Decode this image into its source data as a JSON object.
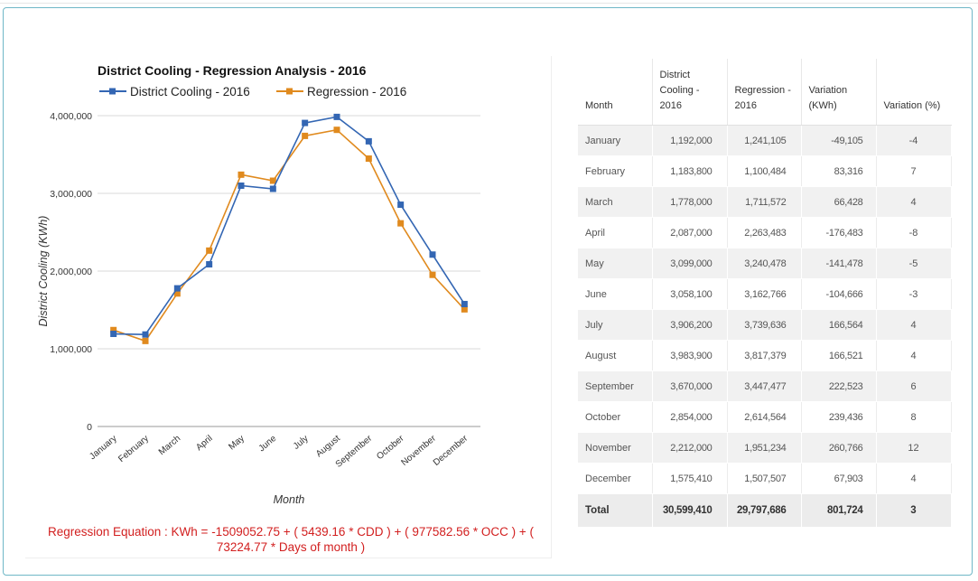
{
  "chart_data": {
    "type": "line",
    "title": "District Cooling - Regression Analysis - 2016",
    "xlabel": "Month",
    "ylabel": "District Cooling (KWh)",
    "ylim": [
      0,
      4000000
    ],
    "yticks": [
      "0",
      "1,000,000",
      "2,000,000",
      "3,000,000",
      "4,000,000"
    ],
    "ytick_values": [
      0,
      1000000,
      2000000,
      3000000,
      4000000
    ],
    "categories": [
      "January",
      "February",
      "March",
      "April",
      "May",
      "June",
      "July",
      "August",
      "September",
      "October",
      "November",
      "December"
    ],
    "grid": true,
    "legend": "top-left",
    "series": [
      {
        "name": "District Cooling - 2016",
        "color": "#3366b3",
        "values": [
          1192000,
          1183800,
          1778000,
          2087000,
          3099000,
          3058100,
          3906200,
          3983900,
          3670000,
          2854000,
          2212000,
          1575410
        ]
      },
      {
        "name": "Regression - 2016",
        "color": "#e08a1e",
        "values": [
          1241105,
          1100484,
          1711572,
          2263483,
          3240478,
          3162766,
          3739636,
          3817379,
          3447477,
          2614564,
          1951234,
          1507507
        ]
      }
    ]
  },
  "regression_equation": "Regression Equation : KWh = -1509052.75 + ( 5439.16 * CDD ) + ( 977582.56 * OCC ) + ( 73224.77 * Days of month )",
  "table": {
    "headers": [
      "Month",
      "District Cooling - 2016",
      "Regression - 2016",
      "Variation (KWh)",
      "Variation (%)"
    ],
    "rows": [
      [
        "January",
        "1,192,000",
        "1,241,105",
        "-49,105",
        "-4"
      ],
      [
        "February",
        "1,183,800",
        "1,100,484",
        "83,316",
        "7"
      ],
      [
        "March",
        "1,778,000",
        "1,711,572",
        "66,428",
        "4"
      ],
      [
        "April",
        "2,087,000",
        "2,263,483",
        "-176,483",
        "-8"
      ],
      [
        "May",
        "3,099,000",
        "3,240,478",
        "-141,478",
        "-5"
      ],
      [
        "June",
        "3,058,100",
        "3,162,766",
        "-104,666",
        "-3"
      ],
      [
        "July",
        "3,906,200",
        "3,739,636",
        "166,564",
        "4"
      ],
      [
        "August",
        "3,983,900",
        "3,817,379",
        "166,521",
        "4"
      ],
      [
        "September",
        "3,670,000",
        "3,447,477",
        "222,523",
        "6"
      ],
      [
        "October",
        "2,854,000",
        "2,614,564",
        "239,436",
        "8"
      ],
      [
        "November",
        "2,212,000",
        "1,951,234",
        "260,766",
        "12"
      ],
      [
        "December",
        "1,575,410",
        "1,507,507",
        "67,903",
        "4"
      ]
    ],
    "total": [
      "Total",
      "30,599,410",
      "29,797,686",
      "801,724",
      "3"
    ]
  }
}
